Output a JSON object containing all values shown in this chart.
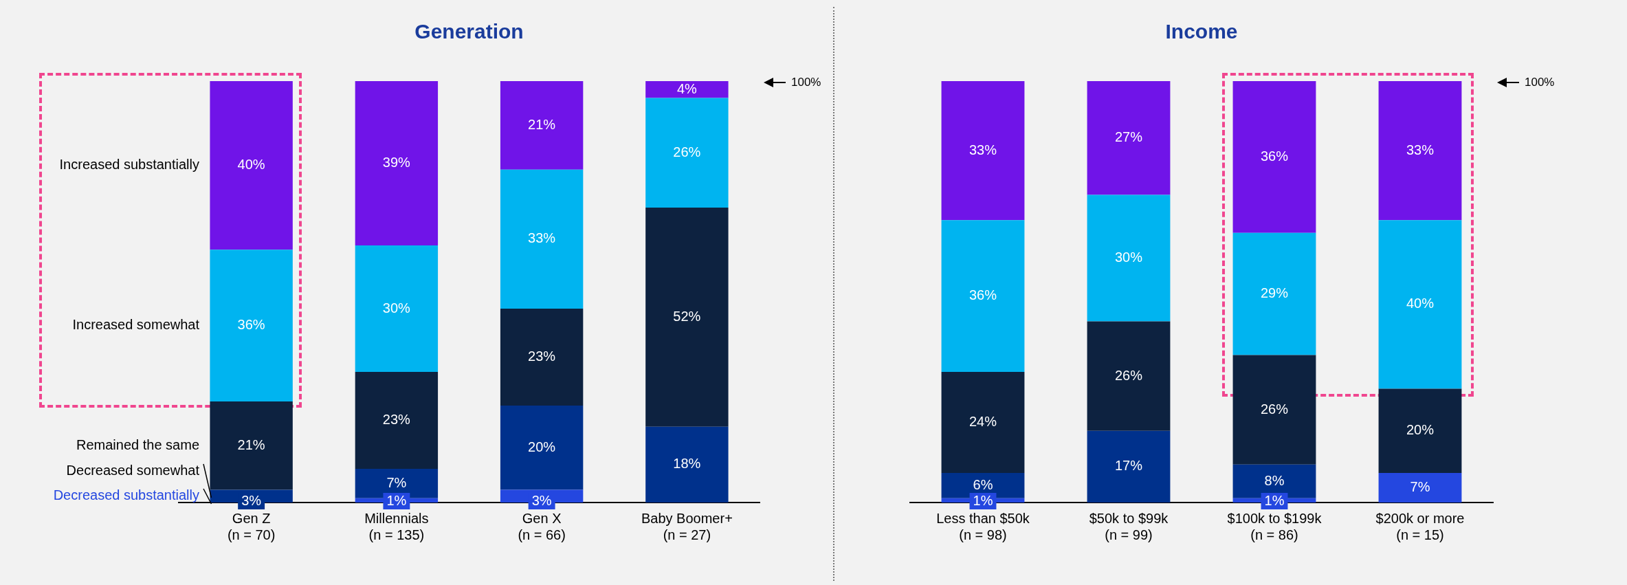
{
  "chart_data": [
    {
      "type": "bar",
      "title": "Generation",
      "stacked": true,
      "legend": "left",
      "tick_labels": "x",
      "categories": [
        "Gen Z\n(n = 70)",
        "Millennials\n(n = 135)",
        "Gen X\n(n = 66)",
        "Baby Boomer+\n(n = 27)"
      ],
      "annotations": [
        "100%"
      ],
      "series": [
        {
          "name": "Decreased substantially",
          "color": "#2447e0",
          "values": [
            null,
            1,
            3,
            null
          ],
          "value_labels": [
            null,
            "1%",
            "3%",
            null
          ]
        },
        {
          "name": "Decreased somewhat",
          "color": "#00318c",
          "values": [
            3,
            7,
            20,
            18
          ],
          "value_labels": [
            "3%",
            "7%",
            "20%",
            "18%"
          ]
        },
        {
          "name": "Remained the same",
          "color": "#0d2240",
          "values": [
            21,
            23,
            23,
            52
          ],
          "value_labels": [
            "21%",
            "23%",
            "23%",
            "52%"
          ]
        },
        {
          "name": "Increased somewhat",
          "color": "#00b4f0",
          "values": [
            36,
            30,
            33,
            26
          ],
          "value_labels": [
            "36%",
            "30%",
            "33%",
            "26%"
          ]
        },
        {
          "name": "Increased substantially",
          "color": "#7014e8",
          "values": [
            40,
            39,
            21,
            4
          ],
          "value_labels": [
            "40%",
            "39%",
            "21%",
            "4%"
          ]
        }
      ]
    },
    {
      "type": "bar",
      "title": "Income",
      "stacked": true,
      "tick_labels": "x",
      "categories": [
        "Less than $50k\n(n = 98)",
        "$50k to $99k\n(n = 99)",
        "$100k to $199k\n(n = 86)",
        "$200k or more\n(n = 15)"
      ],
      "annotations": [
        "100%"
      ],
      "series": [
        {
          "color": "#2447e0",
          "values": [
            1,
            null,
            1,
            7
          ],
          "value_labels": [
            "1%",
            null,
            "1%",
            "7%"
          ]
        },
        {
          "color": "#00318c",
          "values": [
            6,
            17,
            8,
            null
          ],
          "value_labels": [
            "6%",
            "17%",
            "8%",
            null
          ]
        },
        {
          "color": "#0d2240",
          "values": [
            24,
            26,
            26,
            20
          ],
          "value_labels": [
            "24%",
            "26%",
            "26%",
            "20%"
          ]
        },
        {
          "color": "#00b4f0",
          "values": [
            36,
            30,
            29,
            40
          ],
          "value_labels": [
            "36%",
            "30%",
            "29%",
            "40%"
          ]
        },
        {
          "color": "#7014e8",
          "values": [
            33,
            27,
            36,
            33
          ],
          "value_labels": [
            "33%",
            "27%",
            "36%",
            "33%"
          ]
        }
      ]
    }
  ]
}
